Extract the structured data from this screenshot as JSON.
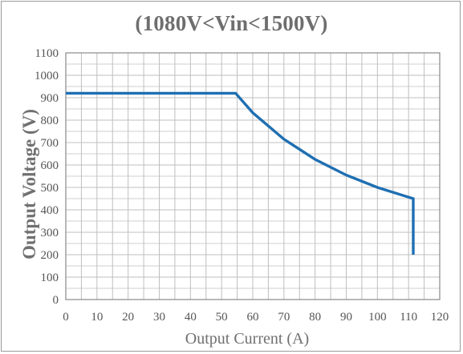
{
  "chart_data": {
    "type": "line",
    "title": "(1080V<Vin<1500V)",
    "xlabel": "Output Current (A)",
    "ylabel": "Output Voltage (V)",
    "xlim": [
      0,
      120
    ],
    "ylim": [
      0,
      1100
    ],
    "x_ticks": [
      "0",
      "10",
      "20",
      "30",
      "40",
      "50",
      "60",
      "70",
      "80",
      "90",
      "100",
      "110",
      "120"
    ],
    "y_ticks": [
      "0",
      "100",
      "200",
      "300",
      "400",
      "500",
      "600",
      "700",
      "800",
      "900",
      "1000",
      "1100"
    ],
    "x_minor_step": 5,
    "y_major_step": 100,
    "grid": true,
    "colors": {
      "line": "#1f6fb2",
      "grid": "#bfbfbf",
      "plot_border": "#888888",
      "title": "#6e6e6e"
    },
    "series": [
      {
        "x": [
          0,
          54.5,
          60,
          70,
          80,
          90,
          100,
          111.5,
          111.5
        ],
        "y": [
          920,
          920,
          833,
          715,
          625,
          555,
          500,
          450,
          200
        ]
      }
    ]
  }
}
